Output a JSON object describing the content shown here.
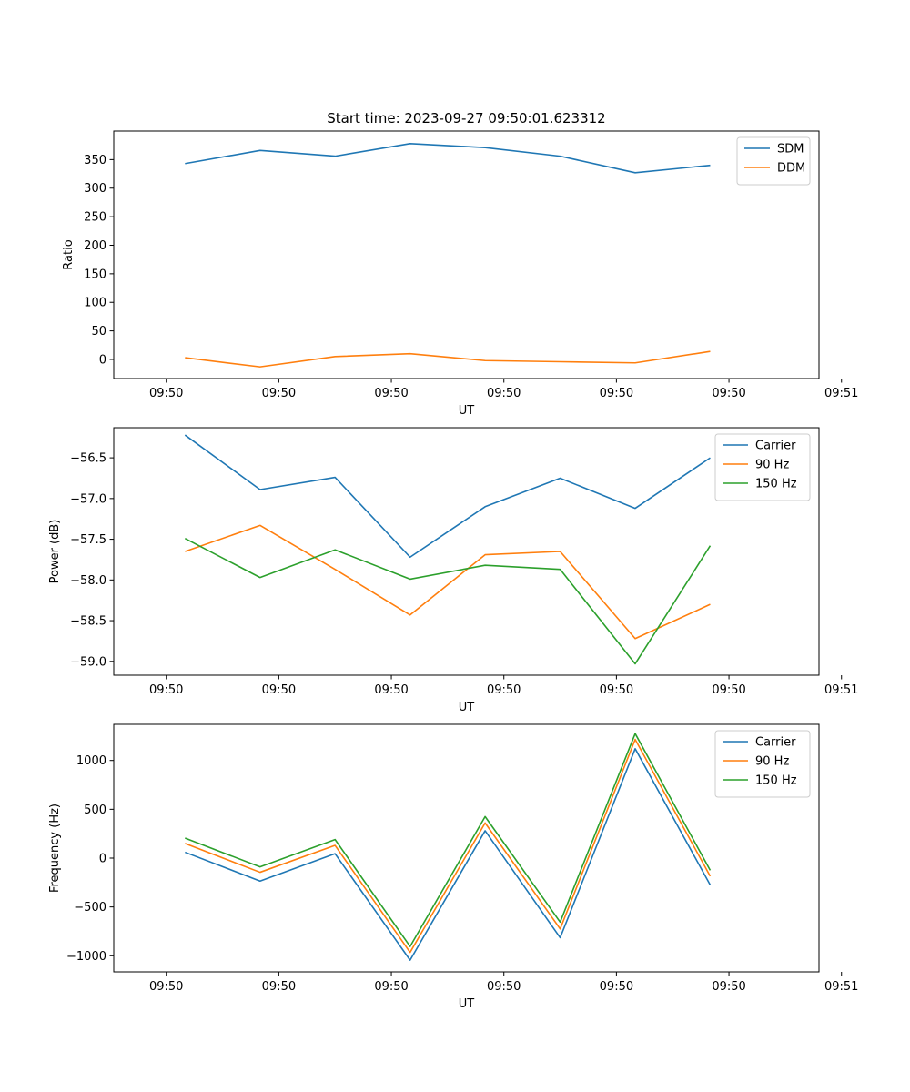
{
  "figure": {
    "title": "Start time: 2023-09-27 09:50:01.623312"
  },
  "chart_data": [
    {
      "type": "line",
      "title": "Start time: 2023-09-27 09:50:01.623312",
      "xlabel": "UT",
      "ylabel": "Ratio",
      "ylim": [
        -33.5,
        400
      ],
      "xlim": [
        -0.7,
        8.7
      ],
      "x": [
        0.25,
        1.25,
        2.25,
        3.25,
        4.25,
        5.25,
        6.25,
        7.25
      ],
      "x_ticks": [
        0,
        1.5,
        3,
        4.5,
        6,
        7.5,
        9
      ],
      "x_tick_labels": [
        "09:50",
        "09:50",
        "09:50",
        "09:50",
        "09:50",
        "09:50",
        "09:51"
      ],
      "y_ticks": [
        0,
        50,
        100,
        150,
        200,
        250,
        300,
        350
      ],
      "y_tick_labels": [
        "0",
        "50",
        "100",
        "150",
        "200",
        "250",
        "300",
        "350"
      ],
      "legend_position": "top-right",
      "series": [
        {
          "name": "SDM",
          "color": "#1f77b4",
          "values": [
            343,
            366,
            356,
            378,
            371,
            356,
            327,
            340
          ]
        },
        {
          "name": "DDM",
          "color": "#ff7f0e",
          "values": [
            3,
            -13,
            5,
            10,
            -2,
            -4,
            -6,
            14
          ]
        }
      ]
    },
    {
      "type": "line",
      "title": "",
      "xlabel": "UT",
      "ylabel": "Power (dB)",
      "ylim": [
        -59.17,
        -56.13
      ],
      "xlim": [
        -0.7,
        8.7
      ],
      "x": [
        0.25,
        1.25,
        2.25,
        3.25,
        4.25,
        5.25,
        6.25,
        7.25
      ],
      "x_ticks": [
        0,
        1.5,
        3,
        4.5,
        6,
        7.5,
        9
      ],
      "x_tick_labels": [
        "09:50",
        "09:50",
        "09:50",
        "09:50",
        "09:50",
        "09:50",
        "09:51"
      ],
      "y_ticks": [
        -56.5,
        -57.0,
        -57.5,
        -58.0,
        -58.5,
        -59.0
      ],
      "y_tick_labels": [
        "−56.5",
        "−57.0",
        "−57.5",
        "−58.0",
        "−58.5",
        "−59.0"
      ],
      "legend_position": "top-right",
      "series": [
        {
          "name": "Carrier",
          "color": "#1f77b4",
          "values": [
            -56.22,
            -56.89,
            -56.74,
            -57.72,
            -57.1,
            -56.75,
            -57.12,
            -56.5
          ]
        },
        {
          "name": "90 Hz",
          "color": "#ff7f0e",
          "values": [
            -57.65,
            -57.33,
            -57.87,
            -58.43,
            -57.69,
            -57.65,
            -58.72,
            -58.3
          ]
        },
        {
          "name": "150 Hz",
          "color": "#2ca02c",
          "values": [
            -57.49,
            -57.97,
            -57.63,
            -57.99,
            -57.82,
            -57.87,
            -59.03,
            -57.58
          ]
        }
      ]
    },
    {
      "type": "line",
      "title": "",
      "xlabel": "UT",
      "ylabel": "Frequency (Hz)",
      "ylim": [
        -1165,
        1370
      ],
      "xlim": [
        -0.7,
        8.7
      ],
      "x": [
        0.25,
        1.25,
        2.25,
        3.25,
        4.25,
        5.25,
        6.25,
        7.25
      ],
      "x_ticks": [
        0,
        1.5,
        3,
        4.5,
        6,
        7.5,
        9
      ],
      "x_tick_labels": [
        "09:50",
        "09:50",
        "09:50",
        "09:50",
        "09:50",
        "09:50",
        "09:51"
      ],
      "y_ticks": [
        1000,
        500,
        0,
        -500,
        -1000
      ],
      "y_tick_labels": [
        "1000",
        "500",
        "0",
        "−500",
        "−1000"
      ],
      "legend_position": "top-right",
      "series": [
        {
          "name": "Carrier",
          "color": "#1f77b4",
          "values": [
            60,
            -235,
            45,
            -1045,
            280,
            -815,
            1120,
            -275
          ]
        },
        {
          "name": "90 Hz",
          "color": "#ff7f0e",
          "values": [
            150,
            -145,
            130,
            -965,
            360,
            -725,
            1215,
            -185
          ]
        },
        {
          "name": "150 Hz",
          "color": "#2ca02c",
          "values": [
            205,
            -90,
            190,
            -905,
            425,
            -655,
            1275,
            -125
          ]
        }
      ]
    }
  ]
}
